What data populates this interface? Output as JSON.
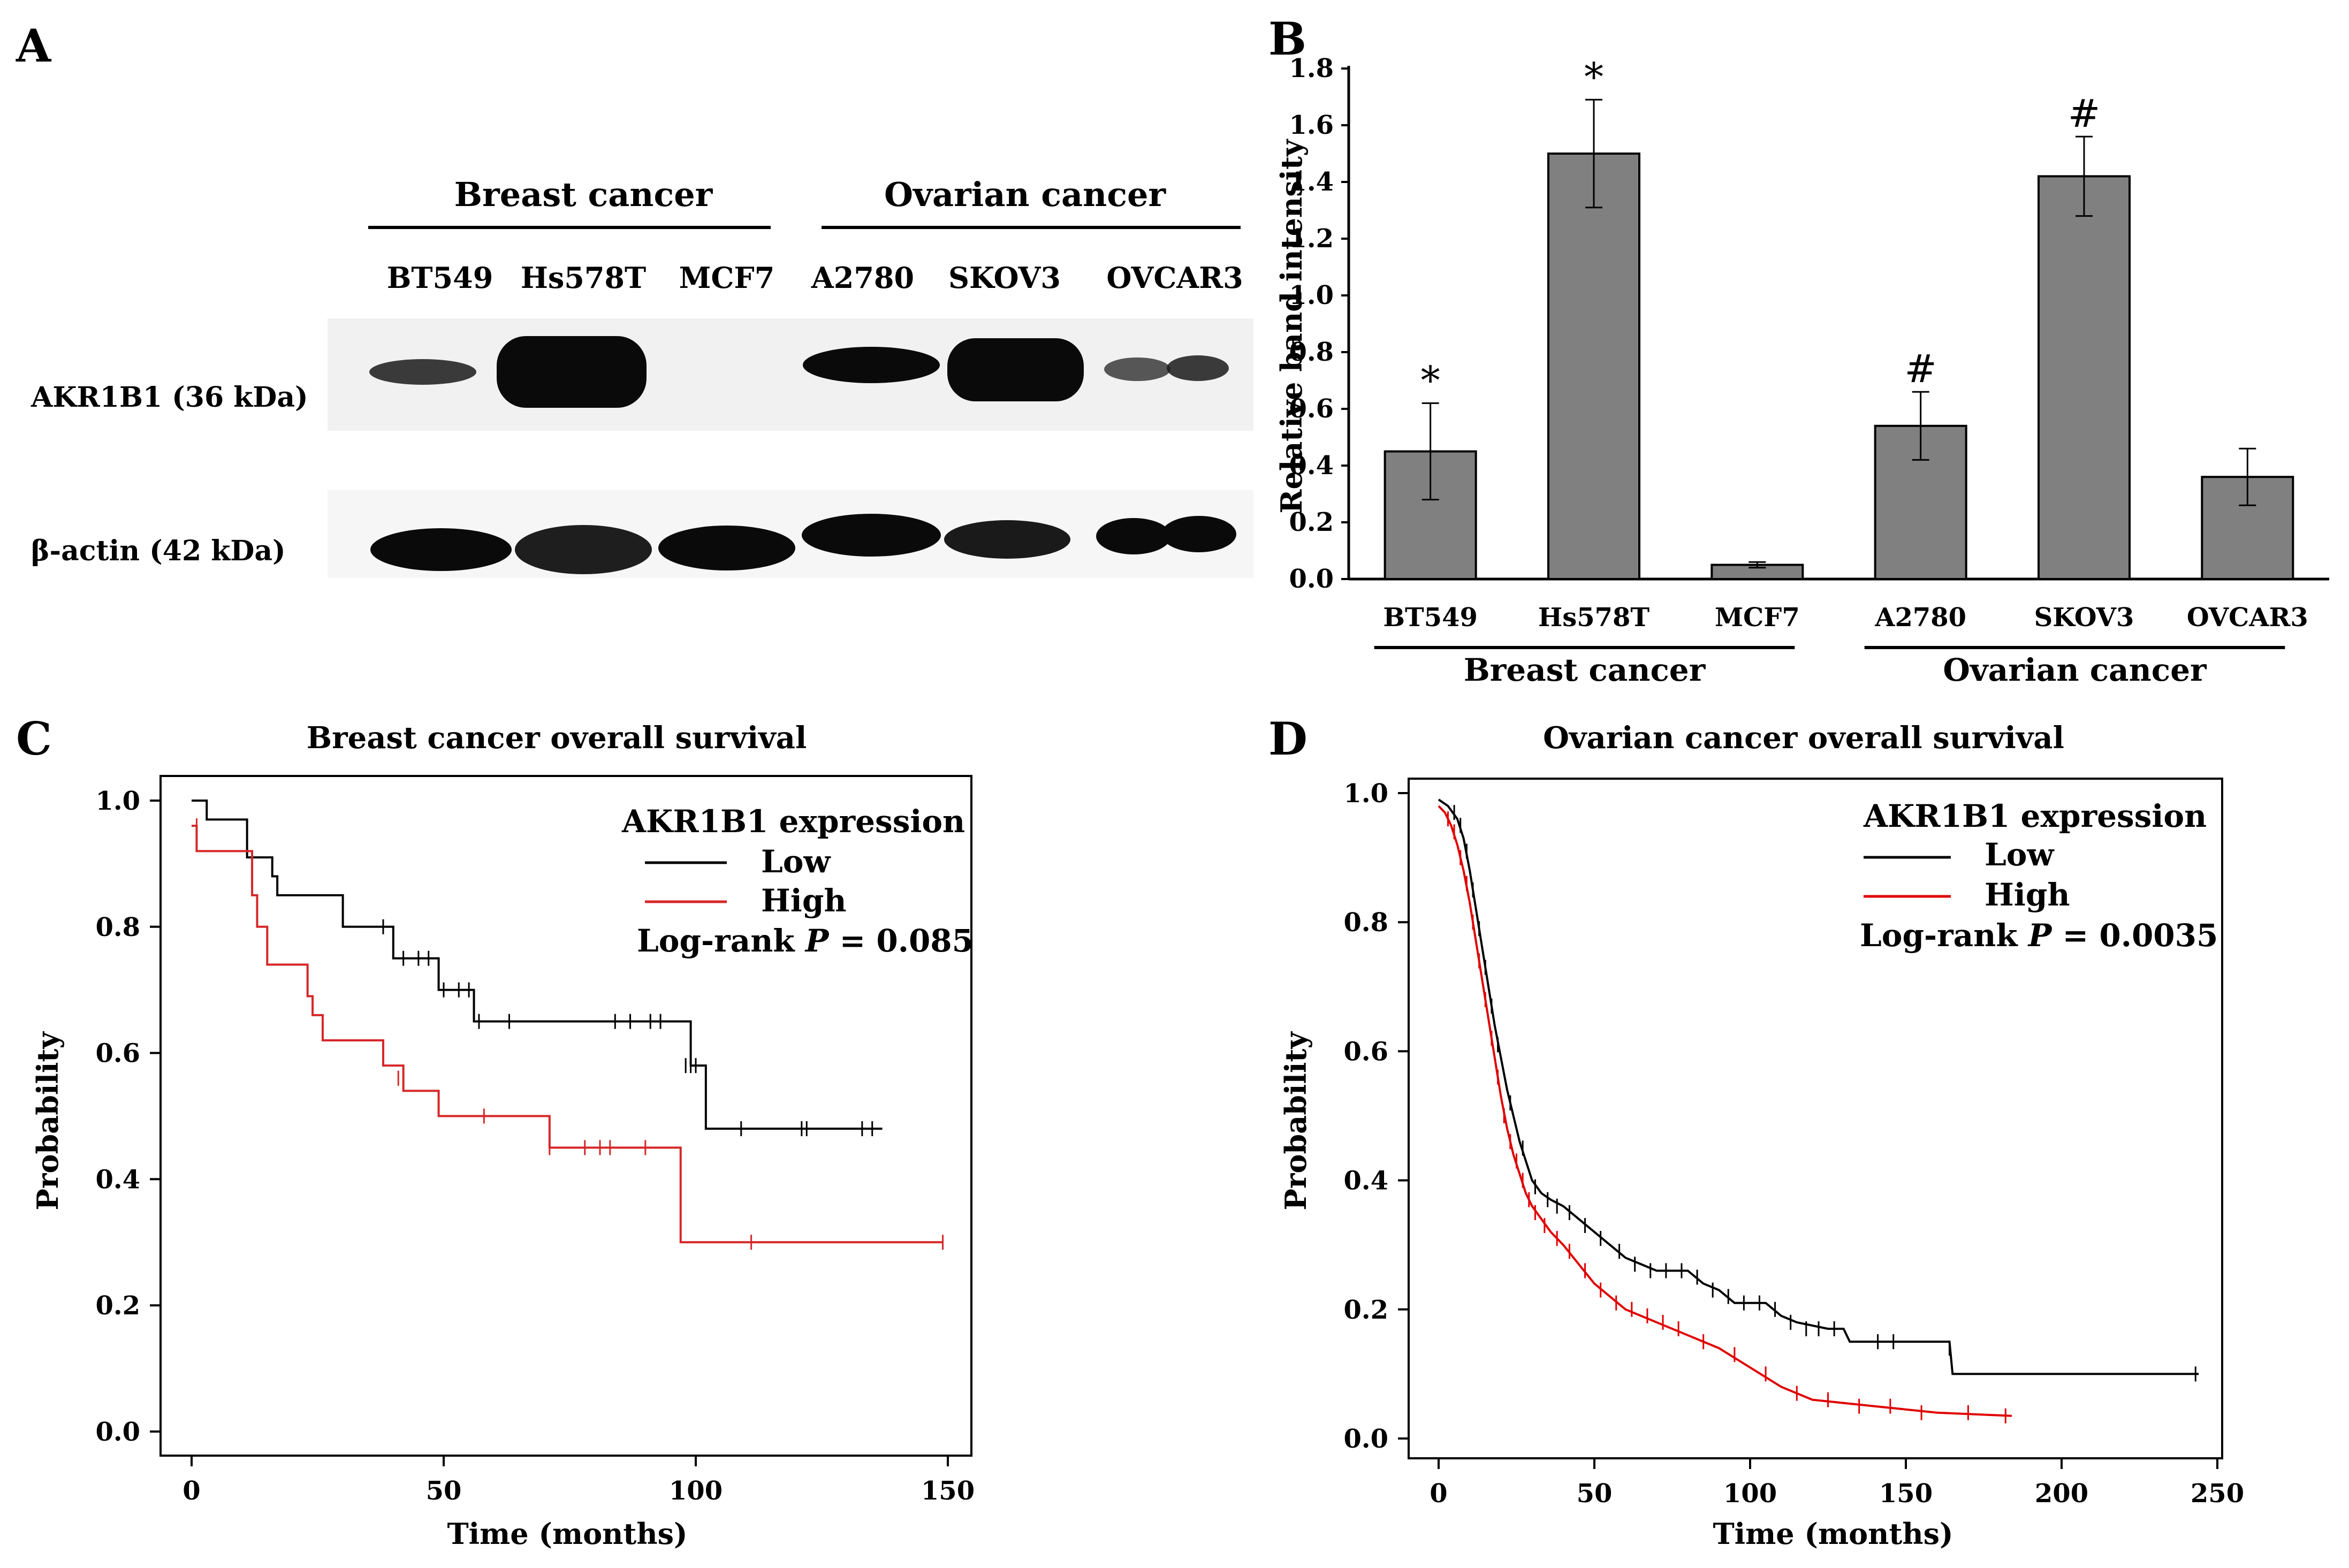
{
  "panel_labels": [
    "A",
    "B",
    "C",
    "D"
  ],
  "blot": {
    "group_headers": [
      "Breast cancer",
      "Ovarian cancer"
    ],
    "lanes": [
      "BT549",
      "Hs578T",
      "MCF7",
      "A2780",
      "SKOV3",
      "OVCAR3"
    ],
    "rows": [
      "AKR1B1 (36 kDa)",
      "β-actin (42 kDa)"
    ],
    "band_color": "#0a0a0a"
  },
  "chart_data": [
    {
      "panel": "B",
      "type": "bar",
      "categories": [
        "BT549",
        "Hs578T",
        "MCF7",
        "A2780",
        "SKOV3",
        "OVCAR3"
      ],
      "values": [
        0.45,
        1.5,
        0.05,
        0.54,
        1.42,
        0.36
      ],
      "errors": [
        0.17,
        0.19,
        0.01,
        0.12,
        0.14,
        0.1
      ],
      "significance": [
        "*",
        "*",
        "",
        "#",
        "#",
        ""
      ],
      "groups": [
        {
          "label": "Breast cancer",
          "categories": [
            "BT549",
            "Hs578T",
            "MCF7"
          ]
        },
        {
          "label": "Ovarian cancer",
          "categories": [
            "A2780",
            "SKOV3",
            "OVCAR3"
          ]
        }
      ],
      "ylabel": "Relative band intensity",
      "ylim": [
        0,
        1.8
      ],
      "yticks": [
        "0.0",
        "0.2",
        "0.4",
        "0.6",
        "0.8",
        "1.0",
        "1.2",
        "1.4",
        "1.6",
        "1.8"
      ],
      "bar_color": "#808080"
    },
    {
      "panel": "C",
      "type": "line",
      "title": "Breast cancer overall survival",
      "xlabel": "Time (months)",
      "ylabel": "Probability",
      "xlim": [
        0,
        150
      ],
      "ylim": [
        0,
        1.0
      ],
      "xticks": [
        "0",
        "50",
        "100",
        "150"
      ],
      "yticks": [
        "0.0",
        "0.2",
        "0.4",
        "0.6",
        "0.8",
        "1.0"
      ],
      "legend_title": "AKR1B1 expression",
      "stat_prefix": "Log-rank ",
      "stat_symbol": "P",
      "stat_value": " = 0.085",
      "series": [
        {
          "name": "Low",
          "color": "#000000",
          "steps": [
            [
              0,
              1.0
            ],
            [
              3,
              0.97
            ],
            [
              10,
              0.97
            ],
            [
              11,
              0.91
            ],
            [
              16,
              0.88
            ],
            [
              17,
              0.85
            ],
            [
              29,
              0.85
            ],
            [
              30,
              0.8
            ],
            [
              39,
              0.8
            ],
            [
              40,
              0.75
            ],
            [
              48,
              0.75
            ],
            [
              49,
              0.7
            ],
            [
              55,
              0.7
            ],
            [
              56,
              0.65
            ],
            [
              98,
              0.65
            ],
            [
              99,
              0.58
            ],
            [
              101,
              0.58
            ],
            [
              102,
              0.48
            ],
            [
              137,
              0.48
            ]
          ],
          "censor": [
            [
              38,
              0.8
            ],
            [
              42,
              0.75
            ],
            [
              45,
              0.75
            ],
            [
              47,
              0.75
            ],
            [
              50,
              0.7
            ],
            [
              53,
              0.7
            ],
            [
              55,
              0.7
            ],
            [
              57,
              0.65
            ],
            [
              63,
              0.65
            ],
            [
              84,
              0.65
            ],
            [
              87,
              0.65
            ],
            [
              91,
              0.65
            ],
            [
              93,
              0.65
            ],
            [
              98,
              0.58
            ],
            [
              99,
              0.58
            ],
            [
              100,
              0.58
            ],
            [
              109,
              0.48
            ],
            [
              121,
              0.48
            ],
            [
              122,
              0.48
            ],
            [
              133,
              0.48
            ],
            [
              135,
              0.48
            ]
          ]
        },
        {
          "name": "High",
          "color": "#d62728",
          "steps": [
            [
              0,
              0.96
            ],
            [
              1,
              0.92
            ],
            [
              10,
              0.92
            ],
            [
              12,
              0.85
            ],
            [
              13,
              0.8
            ],
            [
              15,
              0.74
            ],
            [
              22,
              0.74
            ],
            [
              23,
              0.69
            ],
            [
              24,
              0.66
            ],
            [
              26,
              0.62
            ],
            [
              37,
              0.62
            ],
            [
              38,
              0.58
            ],
            [
              42,
              0.54
            ],
            [
              48,
              0.54
            ],
            [
              49,
              0.5
            ],
            [
              70,
              0.5
            ],
            [
              71,
              0.45
            ],
            [
              96,
              0.45
            ],
            [
              97,
              0.3
            ],
            [
              149,
              0.3
            ]
          ],
          "censor": [
            [
              1,
              0.96
            ],
            [
              41,
              0.56
            ],
            [
              58,
              0.5
            ],
            [
              71,
              0.45
            ],
            [
              78,
              0.45
            ],
            [
              81,
              0.45
            ],
            [
              83,
              0.45
            ],
            [
              90,
              0.45
            ],
            [
              111,
              0.3
            ],
            [
              149,
              0.3
            ]
          ]
        }
      ]
    },
    {
      "panel": "D",
      "type": "line",
      "title": "Ovarian cancer overall survival",
      "xlabel": "Time (months)",
      "ylabel": "Probability",
      "xlim": [
        0,
        250
      ],
      "ylim": [
        0,
        1.0
      ],
      "xticks": [
        "0",
        "50",
        "100",
        "150",
        "200",
        "250"
      ],
      "yticks": [
        "0.0",
        "0.2",
        "0.4",
        "0.6",
        "0.8",
        "1.0"
      ],
      "legend_title": "AKR1B1 expression",
      "stat_prefix": "Log-rank ",
      "stat_symbol": "P",
      "stat_value": " = 0.0035",
      "series": [
        {
          "name": "Low",
          "color": "#000000",
          "points": [
            [
              0,
              0.99
            ],
            [
              3,
              0.98
            ],
            [
              6,
              0.96
            ],
            [
              8,
              0.93
            ],
            [
              10,
              0.88
            ],
            [
              12,
              0.82
            ],
            [
              14,
              0.76
            ],
            [
              16,
              0.7
            ],
            [
              18,
              0.64
            ],
            [
              20,
              0.59
            ],
            [
              22,
              0.54
            ],
            [
              24,
              0.5
            ],
            [
              26,
              0.46
            ],
            [
              28,
              0.43
            ],
            [
              30,
              0.4
            ],
            [
              33,
              0.38
            ],
            [
              36,
              0.37
            ],
            [
              40,
              0.36
            ],
            [
              45,
              0.34
            ],
            [
              50,
              0.32
            ],
            [
              55,
              0.3
            ],
            [
              60,
              0.28
            ],
            [
              65,
              0.27
            ],
            [
              70,
              0.26
            ],
            [
              80,
              0.26
            ],
            [
              85,
              0.24
            ],
            [
              90,
              0.23
            ],
            [
              95,
              0.21
            ],
            [
              105,
              0.21
            ],
            [
              110,
              0.19
            ],
            [
              115,
              0.18
            ],
            [
              125,
              0.17
            ],
            [
              130,
              0.17
            ],
            [
              132,
              0.15
            ],
            [
              164,
              0.15
            ],
            [
              165,
              0.1
            ],
            [
              244,
              0.1
            ]
          ],
          "censor": [
            [
              5,
              0.97
            ],
            [
              7,
              0.95
            ],
            [
              9,
              0.91
            ],
            [
              11,
              0.85
            ],
            [
              13,
              0.79
            ],
            [
              15,
              0.73
            ],
            [
              17,
              0.67
            ],
            [
              19,
              0.61
            ],
            [
              23,
              0.52
            ],
            [
              27,
              0.45
            ],
            [
              31,
              0.39
            ],
            [
              35,
              0.37
            ],
            [
              38,
              0.36
            ],
            [
              42,
              0.35
            ],
            [
              47,
              0.33
            ],
            [
              52,
              0.31
            ],
            [
              58,
              0.29
            ],
            [
              63,
              0.27
            ],
            [
              68,
              0.26
            ],
            [
              73,
              0.26
            ],
            [
              78,
              0.26
            ],
            [
              83,
              0.25
            ],
            [
              88,
              0.23
            ],
            [
              93,
              0.22
            ],
            [
              98,
              0.21
            ],
            [
              103,
              0.21
            ],
            [
              108,
              0.2
            ],
            [
              113,
              0.18
            ],
            [
              118,
              0.17
            ],
            [
              122,
              0.17
            ],
            [
              127,
              0.17
            ],
            [
              141,
              0.15
            ],
            [
              146,
              0.15
            ],
            [
              164,
              0.14
            ],
            [
              243,
              0.1
            ]
          ]
        },
        {
          "name": "High",
          "color": "#e00000",
          "points": [
            [
              0,
              0.98
            ],
            [
              2,
              0.97
            ],
            [
              4,
              0.95
            ],
            [
              6,
              0.92
            ],
            [
              8,
              0.88
            ],
            [
              10,
              0.83
            ],
            [
              12,
              0.77
            ],
            [
              14,
              0.71
            ],
            [
              16,
              0.65
            ],
            [
              18,
              0.59
            ],
            [
              20,
              0.53
            ],
            [
              22,
              0.48
            ],
            [
              24,
              0.44
            ],
            [
              26,
              0.41
            ],
            [
              28,
              0.38
            ],
            [
              30,
              0.36
            ],
            [
              33,
              0.34
            ],
            [
              36,
              0.32
            ],
            [
              40,
              0.3
            ],
            [
              45,
              0.27
            ],
            [
              50,
              0.24
            ],
            [
              55,
              0.22
            ],
            [
              60,
              0.2
            ],
            [
              65,
              0.19
            ],
            [
              70,
              0.18
            ],
            [
              80,
              0.16
            ],
            [
              90,
              0.14
            ],
            [
              100,
              0.11
            ],
            [
              110,
              0.08
            ],
            [
              120,
              0.06
            ],
            [
              140,
              0.05
            ],
            [
              160,
              0.04
            ],
            [
              184,
              0.035
            ]
          ],
          "censor": [
            [
              3,
              0.96
            ],
            [
              5,
              0.94
            ],
            [
              7,
              0.9
            ],
            [
              9,
              0.86
            ],
            [
              11,
              0.8
            ],
            [
              13,
              0.74
            ],
            [
              15,
              0.68
            ],
            [
              17,
              0.62
            ],
            [
              19,
              0.56
            ],
            [
              21,
              0.5
            ],
            [
              23,
              0.46
            ],
            [
              25,
              0.43
            ],
            [
              27,
              0.4
            ],
            [
              29,
              0.37
            ],
            [
              31,
              0.35
            ],
            [
              34,
              0.33
            ],
            [
              38,
              0.31
            ],
            [
              42,
              0.29
            ],
            [
              47,
              0.26
            ],
            [
              52,
              0.23
            ],
            [
              57,
              0.21
            ],
            [
              62,
              0.2
            ],
            [
              67,
              0.19
            ],
            [
              72,
              0.18
            ],
            [
              77,
              0.17
            ],
            [
              85,
              0.15
            ],
            [
              95,
              0.13
            ],
            [
              105,
              0.1
            ],
            [
              115,
              0.07
            ],
            [
              125,
              0.06
            ],
            [
              135,
              0.05
            ],
            [
              145,
              0.05
            ],
            [
              155,
              0.04
            ],
            [
              170,
              0.04
            ],
            [
              182,
              0.035
            ]
          ]
        }
      ]
    }
  ]
}
